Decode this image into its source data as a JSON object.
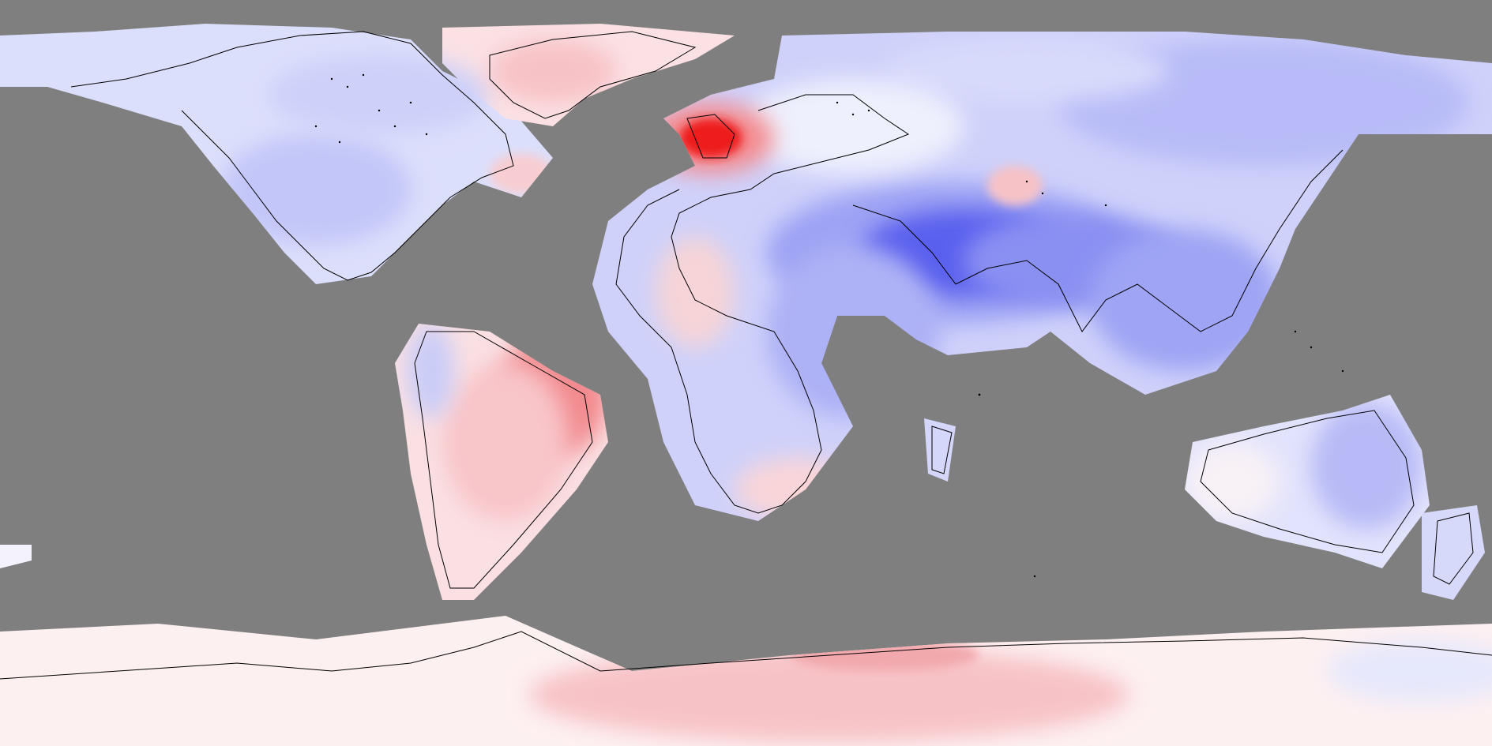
{
  "map": {
    "projection": "equirectangular",
    "coverage": "global",
    "ocean_color": "#7f7f7f",
    "coastline_color": "#000000",
    "colors": {
      "strong_blue": "#5a60ee",
      "medium_blue": "#9aa0f4",
      "light_blue": "#c9cbf9",
      "pale_blue": "#e4e5fc",
      "near_white": "#f7f5fd",
      "pale_pink": "#fbe3e6",
      "light_pink": "#f7c2c6",
      "medium_red": "#f28a8e",
      "strong_red": "#ee1b1b"
    },
    "features": [
      {
        "name": "anomaly-uk-ireland",
        "tone": "strong_red"
      },
      {
        "name": "anomaly-arabia-south-asia",
        "tone": "strong_blue"
      },
      {
        "name": "anomaly-brazil",
        "tone": "medium_red"
      },
      {
        "name": "anomaly-greenland",
        "tone": "light_pink"
      },
      {
        "name": "anomaly-central-asia",
        "tone": "light_pink"
      },
      {
        "name": "anomaly-east-antarctica",
        "tone": "light_pink"
      }
    ]
  }
}
